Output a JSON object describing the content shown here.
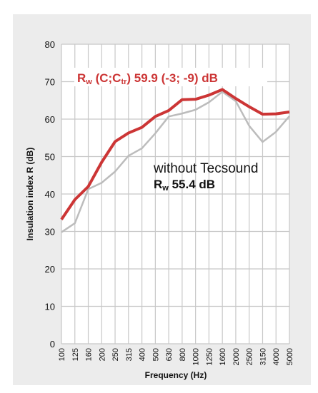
{
  "chart_data": {
    "type": "line",
    "categories": [
      "100",
      "125",
      "160",
      "200",
      "250",
      "315",
      "400",
      "500",
      "630",
      "800",
      "1000",
      "1250",
      "1600",
      "2000",
      "2500",
      "3150",
      "4000",
      "5000"
    ],
    "series": [
      {
        "color": "#bcbcbc",
        "values": [
          29.8,
          32.2,
          41.3,
          43,
          46,
          50.2,
          52.2,
          56.2,
          60.7,
          61.5,
          62.5,
          64.5,
          67.3,
          64.8,
          58.2,
          53.9,
          56.6,
          60.8
        ]
      },
      {
        "color": "#cc3535",
        "values": [
          33.2,
          38.5,
          42,
          48.5,
          54,
          56.3,
          57.8,
          60.7,
          62.3,
          65.2,
          65.3,
          66.4,
          67.9,
          65.5,
          63.3,
          61.3,
          61.4,
          61.9
        ]
      }
    ],
    "ylim": [
      0,
      80
    ],
    "yticks": [
      0,
      10,
      20,
      30,
      40,
      50,
      60,
      70,
      80
    ],
    "grid": true,
    "xlabel": "Frequency (Hz)",
    "ylabel": "Insulation index R (dB)",
    "annotations": [
      {
        "parts": [
          "R",
          "w",
          " (C;C",
          "tr",
          ") 59.9 (-3; -9) dB"
        ]
      },
      {
        "text": "without Tecsound"
      },
      {
        "parts": [
          "R",
          "w",
          " 55.4 dB"
        ]
      }
    ]
  }
}
